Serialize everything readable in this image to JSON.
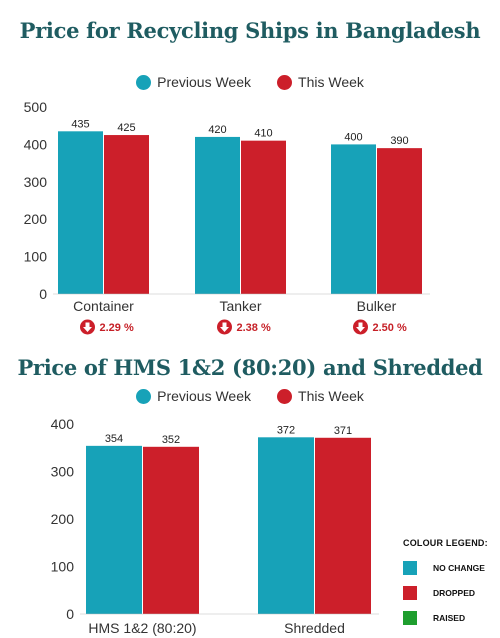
{
  "colors": {
    "previous": "#17a2b8",
    "this": "#cc1f2a",
    "title": "#1f5c61",
    "raised": "#1e9e2e"
  },
  "title1": "Price for Recycling Ships in Bangladesh",
  "title2": "Price of HMS 1&2 (80:20) and Shredded",
  "legend": {
    "previous": "Previous Week",
    "this": "This Week"
  },
  "colour_legend": {
    "title": "COLOUR LEGEND:",
    "items": [
      {
        "label": "NO CHANGE",
        "color": "#17a2b8"
      },
      {
        "label": "DROPPED",
        "color": "#cc1f2a"
      },
      {
        "label": "RAISED",
        "color": "#1e9e2e"
      }
    ]
  },
  "chart_data": [
    {
      "type": "bar",
      "title": "Price for Recycling Ships in Bangladesh",
      "categories": [
        "Container",
        "Tanker",
        "Bulker"
      ],
      "series": [
        {
          "name": "Previous Week",
          "values": [
            435,
            420,
            400
          ]
        },
        {
          "name": "This Week",
          "values": [
            425,
            410,
            390
          ]
        }
      ],
      "ylim": [
        0,
        500
      ],
      "yticks": [
        0,
        100,
        200,
        300,
        400,
        500
      ],
      "change": [
        {
          "text": "2.29 %",
          "direction": "down"
        },
        {
          "text": "2.38 %",
          "direction": "down"
        },
        {
          "text": "2.50 %",
          "direction": "down"
        }
      ],
      "legend_position": "top",
      "grid": false
    },
    {
      "type": "bar",
      "title": "Price of HMS 1&2 (80:20) and Shredded",
      "categories": [
        "HMS 1&2 (80:20)",
        "Shredded"
      ],
      "series": [
        {
          "name": "Previous Week",
          "values": [
            354,
            372
          ]
        },
        {
          "name": "This Week",
          "values": [
            352,
            371
          ]
        }
      ],
      "ylim": [
        0,
        400
      ],
      "yticks": [
        0,
        100,
        200,
        300,
        400
      ],
      "legend_position": "top",
      "grid": false
    }
  ]
}
